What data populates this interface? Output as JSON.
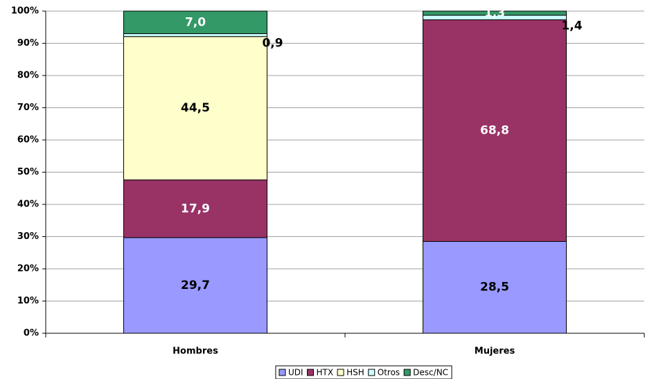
{
  "chart_data": {
    "type": "stacked_bar",
    "categories": [
      "Hombres",
      "Mujeres"
    ],
    "series": [
      {
        "name": "UDI",
        "color": "#9999ff",
        "label_color": "#000000",
        "values": [
          29.7,
          28.5
        ],
        "value_labels": [
          "29,7",
          "28,5"
        ]
      },
      {
        "name": "HTX",
        "color": "#993366",
        "label_color": "#ffffff",
        "values": [
          17.9,
          68.8
        ],
        "value_labels": [
          "17,9",
          "68,8"
        ]
      },
      {
        "name": "HSH",
        "color": "#ffffcc",
        "label_color": "#000000",
        "values": [
          44.5,
          0
        ],
        "value_labels": [
          "44,5",
          null
        ]
      },
      {
        "name": "Otros",
        "color": "#ccffff",
        "label_color": "#000000",
        "values": [
          0.9,
          1.4
        ],
        "value_labels": [
          "0,9",
          "1,4"
        ]
      },
      {
        "name": "Desc/NC",
        "color": "#339966",
        "label_color": "#ffffff",
        "values": [
          7.0,
          1.3
        ],
        "value_labels": [
          "7,0",
          "1,3"
        ]
      }
    ],
    "ylim": [
      0,
      100
    ],
    "yticks": [
      {
        "value": 0,
        "label": "0%"
      },
      {
        "value": 10,
        "label": "10%"
      },
      {
        "value": 20,
        "label": "20%"
      },
      {
        "value": 30,
        "label": "30%"
      },
      {
        "value": 40,
        "label": "40%"
      },
      {
        "value": 50,
        "label": "50%"
      },
      {
        "value": 60,
        "label": "60%"
      },
      {
        "value": 70,
        "label": "70%"
      },
      {
        "value": 80,
        "label": "80%"
      },
      {
        "value": 90,
        "label": "90%"
      },
      {
        "value": 100,
        "label": "100%"
      }
    ],
    "grid": true,
    "legend": "bottom"
  }
}
